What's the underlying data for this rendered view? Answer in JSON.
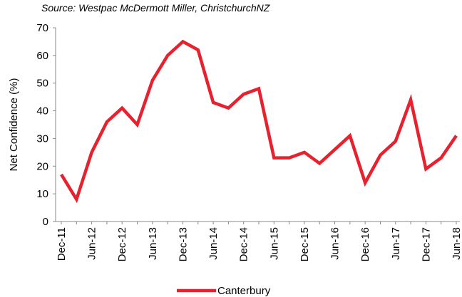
{
  "chart_data": {
    "type": "line",
    "subtitle": "Source: Westpac McDermott Miller, ChristchurchNZ",
    "y_label": "Net Confidence (%)",
    "categories": [
      "Dec-11",
      null,
      "Jun-12",
      null,
      "Dec-12",
      null,
      "Jun-13",
      null,
      "Dec-13",
      null,
      "Jun-14",
      null,
      "Dec-14",
      null,
      "Jun-15",
      null,
      "Dec-15",
      null,
      "Jun-16",
      null,
      "Dec-16",
      null,
      "Jun-17",
      null,
      "Dec-17",
      null,
      "Jun-18"
    ],
    "series": [
      {
        "name": "Canterbury",
        "color": "#e8212e",
        "values": [
          17,
          8,
          25,
          36,
          41,
          35,
          51,
          60,
          65,
          62,
          43,
          41,
          46,
          48,
          23,
          23,
          25,
          21,
          26,
          31,
          14,
          24,
          29,
          44,
          19,
          23,
          31
        ]
      }
    ],
    "ylim": [
      0,
      70
    ],
    "yticks": [
      0,
      10,
      20,
      30,
      40,
      50,
      60,
      70
    ],
    "grid": false,
    "legend": "bottom"
  }
}
